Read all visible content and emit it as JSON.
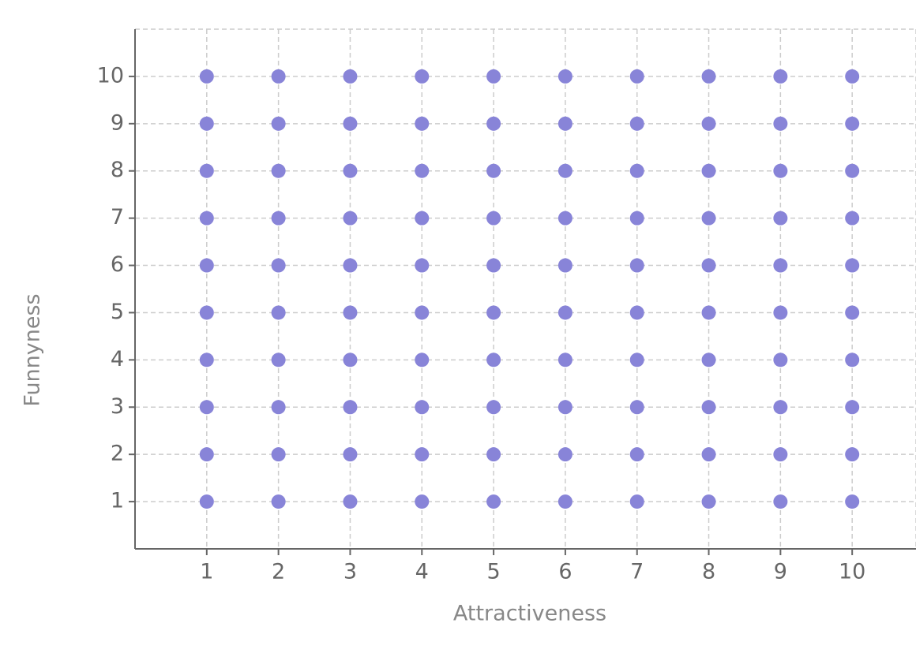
{
  "chart_data": {
    "type": "scatter",
    "x_label": "Attractiveness",
    "y_label": "Funnyness",
    "x": [
      1,
      2,
      3,
      4,
      5,
      6,
      7,
      8,
      9,
      10,
      1,
      2,
      3,
      4,
      5,
      6,
      7,
      8,
      9,
      10,
      1,
      2,
      3,
      4,
      5,
      6,
      7,
      8,
      9,
      10,
      1,
      2,
      3,
      4,
      5,
      6,
      7,
      8,
      9,
      10,
      1,
      2,
      3,
      4,
      5,
      6,
      7,
      8,
      9,
      10,
      1,
      2,
      3,
      4,
      5,
      6,
      7,
      8,
      9,
      10,
      1,
      2,
      3,
      4,
      5,
      6,
      7,
      8,
      9,
      10,
      1,
      2,
      3,
      4,
      5,
      6,
      7,
      8,
      9,
      10,
      1,
      2,
      3,
      4,
      5,
      6,
      7,
      8,
      9,
      10,
      1,
      2,
      3,
      4,
      5,
      6,
      7,
      8,
      9,
      10
    ],
    "values": [
      1,
      1,
      1,
      1,
      1,
      1,
      1,
      1,
      1,
      1,
      2,
      2,
      2,
      2,
      2,
      2,
      2,
      2,
      2,
      2,
      3,
      3,
      3,
      3,
      3,
      3,
      3,
      3,
      3,
      3,
      4,
      4,
      4,
      4,
      4,
      4,
      4,
      4,
      4,
      4,
      5,
      5,
      5,
      5,
      5,
      5,
      5,
      5,
      5,
      5,
      6,
      6,
      6,
      6,
      6,
      6,
      6,
      6,
      6,
      6,
      7,
      7,
      7,
      7,
      7,
      7,
      7,
      7,
      7,
      7,
      8,
      8,
      8,
      8,
      8,
      8,
      8,
      8,
      8,
      8,
      9,
      9,
      9,
      9,
      9,
      9,
      9,
      9,
      9,
      9,
      10,
      10,
      10,
      10,
      10,
      10,
      10,
      10,
      10,
      10
    ],
    "color": "#8884d8",
    "xlim": [
      0,
      11
    ],
    "ylim": [
      0,
      11
    ],
    "xticks": [
      1,
      2,
      3,
      4,
      5,
      6,
      7,
      8,
      9,
      10
    ],
    "yticks": [
      1,
      2,
      3,
      4,
      5,
      6,
      7,
      8,
      9,
      10
    ],
    "grid": true
  }
}
